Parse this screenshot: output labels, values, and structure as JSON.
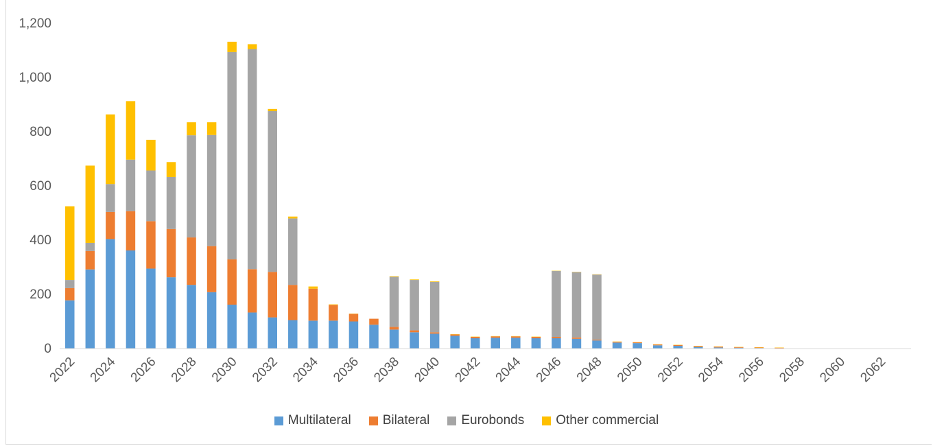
{
  "chart_data": {
    "type": "bar",
    "stacked": true,
    "title": "",
    "xlabel": "",
    "ylabel": "",
    "ylim": [
      0,
      1200
    ],
    "yticks": [
      "0",
      "200",
      "400",
      "600",
      "800",
      "1,000",
      "1,200"
    ],
    "xtick_labels": [
      "2022",
      "2024",
      "2026",
      "2028",
      "2030",
      "2032",
      "2034",
      "2036",
      "2038",
      "2040",
      "2042",
      "2044",
      "2046",
      "2048",
      "2050",
      "2052",
      "2054",
      "2056",
      "2058",
      "2060",
      "2062"
    ],
    "grid": false,
    "legend_position": "bottom",
    "categories": [
      "2022",
      "2023",
      "2024",
      "2025",
      "2026",
      "2027",
      "2028",
      "2029",
      "2030",
      "2031",
      "2032",
      "2033",
      "2034",
      "2035",
      "2036",
      "2037",
      "2038",
      "2039",
      "2040",
      "2041",
      "2042",
      "2043",
      "2044",
      "2045",
      "2046",
      "2047",
      "2048",
      "2049",
      "2050",
      "2051",
      "2052",
      "2053",
      "2054",
      "2055",
      "2056",
      "2057",
      "2058",
      "2059",
      "2060",
      "2061",
      "2062",
      "2063"
    ],
    "series": [
      {
        "name": "Multilateral",
        "color": "#5b9bd5",
        "values": [
          178,
          292,
          404,
          362,
          295,
          263,
          235,
          208,
          162,
          133,
          115,
          105,
          103,
          103,
          100,
          88,
          70,
          60,
          55,
          47,
          38,
          40,
          40,
          38,
          38,
          36,
          30,
          22,
          20,
          12,
          10,
          6,
          4,
          3,
          2,
          1,
          0,
          0,
          0,
          0,
          0,
          0
        ]
      },
      {
        "name": "Bilateral",
        "color": "#ed7d31",
        "values": [
          45,
          68,
          100,
          145,
          175,
          178,
          175,
          170,
          167,
          160,
          168,
          130,
          118,
          58,
          28,
          22,
          10,
          7,
          5,
          5,
          5,
          5,
          5,
          5,
          5,
          5,
          3,
          3,
          3,
          3,
          3,
          3,
          3,
          2,
          2,
          2,
          0,
          0,
          0,
          0,
          0,
          0
        ]
      },
      {
        "name": "Eurobonds",
        "color": "#a5a5a5",
        "values": [
          30,
          30,
          103,
          190,
          187,
          192,
          377,
          410,
          765,
          812,
          593,
          245,
          0,
          0,
          0,
          0,
          185,
          186,
          186,
          0,
          0,
          0,
          0,
          0,
          243,
          241,
          240,
          0,
          0,
          0,
          0,
          0,
          0,
          0,
          0,
          0,
          0,
          0,
          0,
          0,
          0,
          0
        ]
      },
      {
        "name": "Other commercial",
        "color": "#ffc000",
        "values": [
          272,
          285,
          257,
          216,
          113,
          55,
          48,
          47,
          38,
          18,
          8,
          7,
          8,
          2,
          1,
          0,
          2,
          2,
          2,
          1,
          1,
          1,
          1,
          1,
          1,
          1,
          1,
          1,
          1,
          1,
          1,
          1,
          1,
          1,
          1,
          1,
          0,
          0,
          0,
          0,
          0,
          0
        ]
      }
    ]
  }
}
